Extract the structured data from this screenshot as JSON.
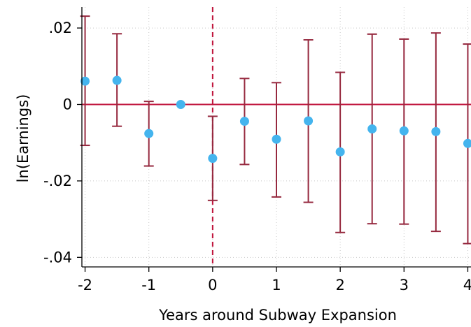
{
  "chart_data": {
    "type": "scatter",
    "subtype": "coefficient plot with 95% confidence intervals",
    "title": "",
    "xlabel": "Years around Subway Expansion",
    "ylabel": "ln(Earnings)",
    "xlim": [
      -2.05,
      4.05
    ],
    "ylim": [
      -0.0425,
      0.0255
    ],
    "x_ticks": [
      -2,
      -1,
      0,
      1,
      2,
      3,
      4
    ],
    "x_tick_labels": [
      "-2",
      "-1",
      "0",
      "1",
      "2",
      "3",
      "4"
    ],
    "y_ticks": [
      -0.04,
      -0.02,
      0,
      0.02
    ],
    "y_tick_labels": [
      "-.04",
      "-.02",
      "0",
      ".02"
    ],
    "grid": true,
    "reference_lines": {
      "horizontal_y": 0,
      "vertical_x": 0,
      "vertical_style": "dashed"
    },
    "colors": {
      "point": "#44b4ee",
      "ci": "#96293f",
      "reference": "#c0143c",
      "grid": "#c8c8c8"
    },
    "points": [
      {
        "x": -2.0,
        "y": 0.0061,
        "lower": -0.0107,
        "upper": 0.0231
      },
      {
        "x": -1.5,
        "y": 0.0063,
        "lower": -0.0057,
        "upper": 0.0185
      },
      {
        "x": -1.0,
        "y": -0.0076,
        "lower": -0.0161,
        "upper": 0.0008
      },
      {
        "x": -0.5,
        "y": 0.0,
        "lower": null,
        "upper": null
      },
      {
        "x": 0.0,
        "y": -0.0141,
        "lower": -0.0251,
        "upper": -0.0031
      },
      {
        "x": 0.5,
        "y": -0.0044,
        "lower": -0.0157,
        "upper": 0.0068
      },
      {
        "x": 1.0,
        "y": -0.0091,
        "lower": -0.0242,
        "upper": 0.0057
      },
      {
        "x": 1.5,
        "y": -0.0043,
        "lower": -0.0256,
        "upper": 0.0169
      },
      {
        "x": 2.0,
        "y": -0.0124,
        "lower": -0.0335,
        "upper": 0.0084
      },
      {
        "x": 2.5,
        "y": -0.0064,
        "lower": -0.0312,
        "upper": 0.0184
      },
      {
        "x": 3.0,
        "y": -0.0069,
        "lower": -0.0313,
        "upper": 0.0171
      },
      {
        "x": 3.5,
        "y": -0.0071,
        "lower": -0.0332,
        "upper": 0.0187
      },
      {
        "x": 4.0,
        "y": -0.0102,
        "lower": -0.0364,
        "upper": 0.0158
      }
    ]
  }
}
